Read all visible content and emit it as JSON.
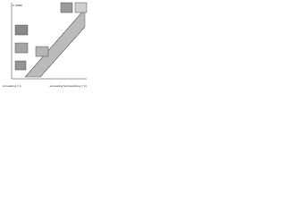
{
  "figure": {
    "y_label": "σ (MPa)",
    "x_label": "annealing temperature (°C)",
    "note": "Annealing 1 h"
  }
}
